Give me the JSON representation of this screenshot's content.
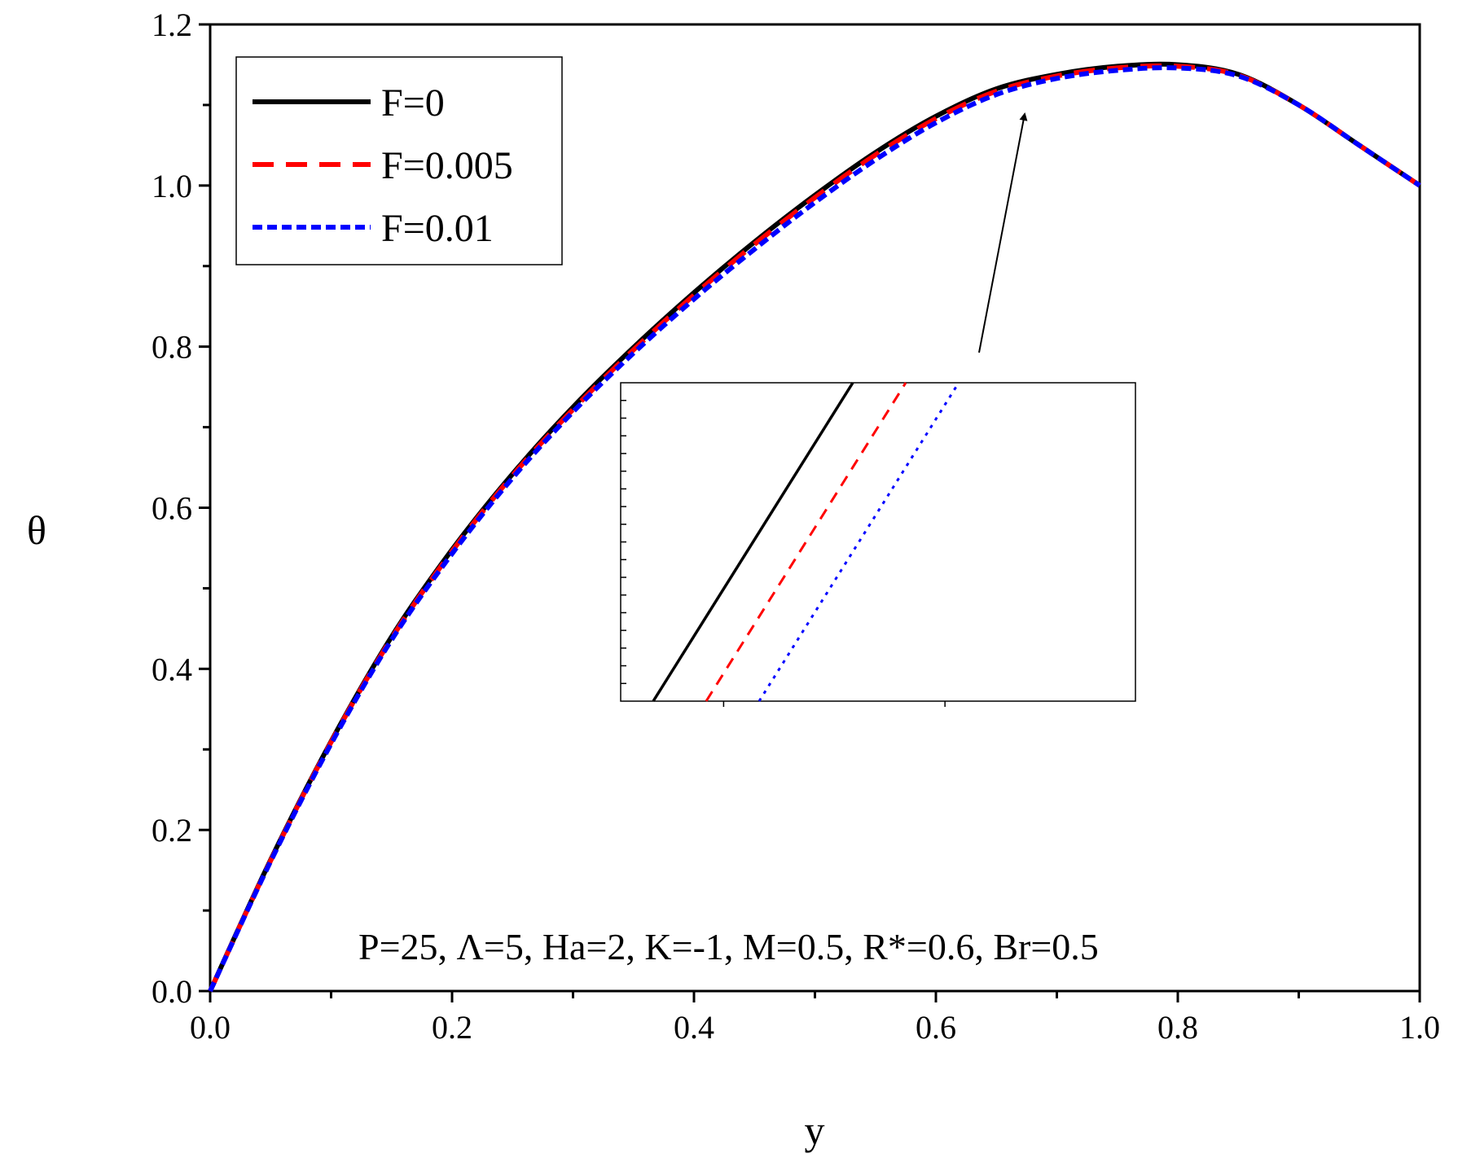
{
  "chart_data": {
    "type": "line",
    "xlabel": "y",
    "ylabel": "θ",
    "xlim": [
      0,
      1
    ],
    "ylim": [
      0,
      1.2
    ],
    "x_ticks": [
      "0.0",
      "0.2",
      "0.4",
      "0.6",
      "0.8",
      "1.0"
    ],
    "y_ticks": [
      "0.0",
      "0.2",
      "0.4",
      "0.6",
      "0.8",
      "1.0",
      "1.2"
    ],
    "grid": false,
    "legend_position": "top-left",
    "annotation": "P=25, Λ=5, Ha=2, K=-1, M=0.5, R*=0.6, Br=0.5",
    "x": [
      0,
      0.05,
      0.1,
      0.15,
      0.2,
      0.25,
      0.3,
      0.35,
      0.4,
      0.45,
      0.5,
      0.55,
      0.6,
      0.65,
      0.7,
      0.75,
      0.8,
      0.85,
      0.9,
      0.95,
      1.0
    ],
    "series": [
      {
        "name": "F=0",
        "color": "#000000",
        "dash": "solid",
        "values": [
          0,
          0.163,
          0.31,
          0.44,
          0.548,
          0.642,
          0.725,
          0.799,
          0.867,
          0.93,
          0.988,
          1.041,
          1.086,
          1.12,
          1.138,
          1.148,
          1.15,
          1.138,
          1.1,
          1.05,
          1.0
        ]
      },
      {
        "name": "F=0.005",
        "color": "#ff0000",
        "dash": "dashed",
        "values": [
          0,
          0.162,
          0.309,
          0.438,
          0.546,
          0.64,
          0.722,
          0.796,
          0.864,
          0.927,
          0.985,
          1.038,
          1.083,
          1.117,
          1.136,
          1.146,
          1.148,
          1.137,
          1.1,
          1.05,
          1.0
        ]
      },
      {
        "name": "F=0.01",
        "color": "#0000ff",
        "dash": "dotted",
        "values": [
          0,
          0.161,
          0.307,
          0.436,
          0.543,
          0.637,
          0.719,
          0.792,
          0.859,
          0.921,
          0.979,
          1.032,
          1.078,
          1.113,
          1.133,
          1.143,
          1.146,
          1.136,
          1.1,
          1.05,
          1.0
        ]
      }
    ],
    "inset": {
      "x": [
        0,
        1
      ],
      "series": [
        {
          "name": "F=0",
          "color": "#000000",
          "dash": "solid",
          "values": [
            0,
            1
          ]
        },
        {
          "name": "F=0.005",
          "color": "#ff0000",
          "dash": "dashed",
          "values": [
            -0.107,
            0.893
          ]
        },
        {
          "name": "F=0.01",
          "color": "#0000ff",
          "dash": "dotted",
          "values": [
            -0.214,
            0.786
          ]
        }
      ]
    }
  }
}
